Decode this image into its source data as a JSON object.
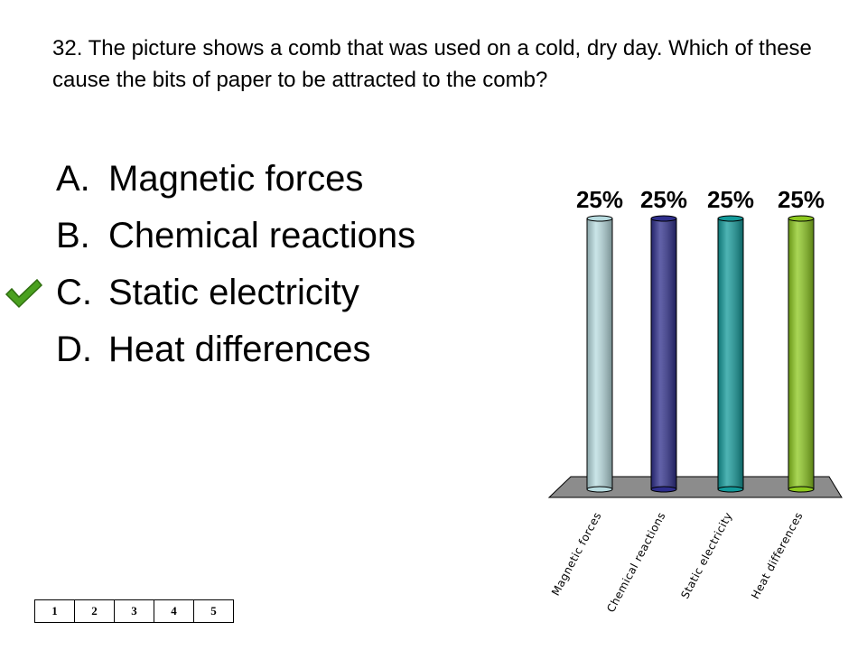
{
  "question": {
    "text": "32.  The picture shows a comb that was used on a cold, dry day.  Which of these cause the bits of paper to be attracted to the comb?"
  },
  "answers": [
    {
      "letter": "A.",
      "text": "Magnetic forces",
      "correct": false
    },
    {
      "letter": "B.",
      "text": "Chemical reactions",
      "correct": false
    },
    {
      "letter": "C.",
      "text": "Static electricity",
      "correct": true
    },
    {
      "letter": "D.",
      "text": "Heat differences",
      "correct": false
    }
  ],
  "correct_icon": "checkmark-icon",
  "colors": {
    "check": "#4aa01f",
    "floor": "#8c8c8c",
    "bars": [
      "#b8dce0",
      "#2e2e8c",
      "#129a9a",
      "#8cc81e"
    ]
  },
  "chart_data": {
    "type": "bar",
    "categories": [
      "Magnetic forces",
      "Chemical reactions",
      "Static electricity",
      "Heat differences"
    ],
    "values": [
      25,
      25,
      25,
      25
    ],
    "data_labels": [
      "25%",
      "25%",
      "25%",
      "25%"
    ],
    "ylim": [
      0,
      25
    ],
    "grid": false,
    "legend": "none"
  },
  "counter": {
    "cells": [
      "1",
      "2",
      "3",
      "4",
      "5"
    ]
  }
}
